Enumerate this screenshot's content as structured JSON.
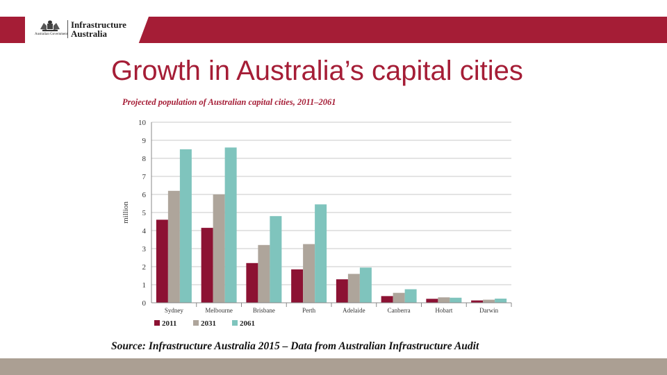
{
  "header": {
    "gov_label": "Australian Government",
    "brand_line1": "Infrastructure",
    "brand_line2": "Australia",
    "crest_icon": "coat-of-arms-icon"
  },
  "slide": {
    "title": "Growth in Australia’s capital cities",
    "source": "Source:  Infrastructure Australia 2015 – Data from Australian Infrastructure Audit"
  },
  "colors": {
    "accent": "#a51d36",
    "band_bottom": "#ab9f93"
  },
  "chart_data": {
    "type": "bar",
    "title": "Projected population of Australian capital cities, 2011–2061",
    "xlabel": "",
    "ylabel": "million",
    "ylim": [
      0,
      10
    ],
    "yticks": [
      "0",
      "1",
      "2",
      "3",
      "4",
      "5",
      "6",
      "7",
      "8",
      "9",
      "10"
    ],
    "grid": true,
    "legend_position": "bottom-left",
    "categories": [
      "Sydney",
      "Melbourne",
      "Brisbane",
      "Perth",
      "Adelaide",
      "Canberra",
      "Hobart",
      "Darwin"
    ],
    "series": [
      {
        "name": "2011",
        "color": "#8c1233",
        "values": [
          4.6,
          4.15,
          2.2,
          1.85,
          1.3,
          0.37,
          0.22,
          0.13
        ]
      },
      {
        "name": "2031",
        "color": "#aea59b",
        "values": [
          6.2,
          6.0,
          3.2,
          3.25,
          1.6,
          0.55,
          0.3,
          0.17
        ]
      },
      {
        "name": "2061",
        "color": "#7fc4bd",
        "values": [
          8.5,
          8.6,
          4.8,
          5.45,
          1.95,
          0.75,
          0.28,
          0.23
        ]
      }
    ]
  }
}
